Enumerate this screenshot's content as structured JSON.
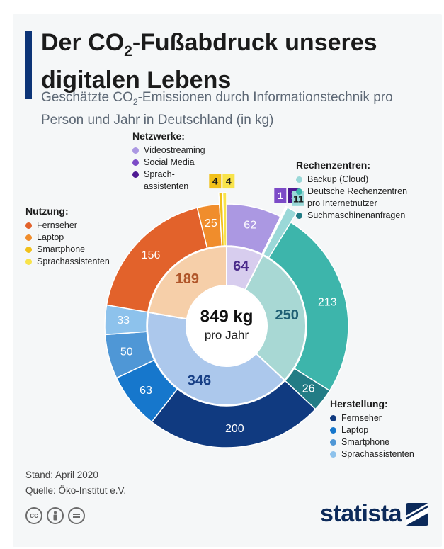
{
  "header": {
    "title_pre": "Der CO",
    "title_sub": "2",
    "title_post": "-Fußabdruck unseres digitalen Lebens",
    "subtitle_pre": "Geschätzte CO",
    "subtitle_sub": "2",
    "subtitle_post": "-Emissionen durch Informationstechnik pro Person und Jahr in Deutschland (in kg)"
  },
  "center": {
    "value": "849 kg",
    "label": "pro Jahr"
  },
  "chart_data": {
    "type": "pie",
    "total": 849,
    "unit": "kg",
    "inner": [
      {
        "name": "Netzwerke",
        "value": 64,
        "label_color": "#4a2a8a"
      },
      {
        "name": "Rechenzentren",
        "value": 250,
        "label_color": "#1f5f74"
      },
      {
        "name": "Herstellung",
        "value": 346,
        "label_color": "#173f86"
      },
      {
        "name": "Nutzung",
        "value": 189,
        "label_color": "#b0562a"
      }
    ],
    "outer": [
      {
        "group": "Netzwerke",
        "name": "Videostreaming",
        "value": 62
      },
      {
        "group": "Netzwerke",
        "name": "Social Media",
        "value": 1
      },
      {
        "group": "Netzwerke",
        "name": "Sprach-assistenten",
        "value": 1
      },
      {
        "group": "Rechenzentren",
        "name": "Backup (Cloud)",
        "value": 11
      },
      {
        "group": "Rechenzentren",
        "name": "Deutsche Rechenzentren pro Internetnutzer",
        "value": 213
      },
      {
        "group": "Rechenzentren",
        "name": "Suchmaschinenanfragen",
        "value": 26
      },
      {
        "group": "Herstellung",
        "name": "Fernseher",
        "value": 200
      },
      {
        "group": "Herstellung",
        "name": "Laptop",
        "value": 63
      },
      {
        "group": "Herstellung",
        "name": "Smartphone",
        "value": 50
      },
      {
        "group": "Herstellung",
        "name": "Sprachassistenten",
        "value": 33
      },
      {
        "group": "Nutzung",
        "name": "Fernseher",
        "value": 156
      },
      {
        "group": "Nutzung",
        "name": "Laptop",
        "value": 25
      },
      {
        "group": "Nutzung",
        "name": "Smartphone",
        "value": 4
      },
      {
        "group": "Nutzung",
        "name": "Sprachassistenten",
        "value": 4
      }
    ],
    "colors": {
      "Netzwerke": {
        "inner": "#d7cdee",
        "outer": [
          "#ab98e2",
          "#7c4bc7",
          "#4e1a93"
        ]
      },
      "Rechenzentren": {
        "inner": "#a8d8d4",
        "outer": [
          "#9ad8d8",
          "#3db5ab",
          "#227c85"
        ]
      },
      "Herstellung": {
        "inner": "#acc8ec",
        "outer": [
          "#103a80",
          "#1677cc",
          "#4f97d6",
          "#8dc2ec"
        ]
      },
      "Nutzung": {
        "inner": "#f6cfa9",
        "outer": [
          "#e2622b",
          "#f08d2c",
          "#f1c01a",
          "#f8e34a"
        ]
      }
    },
    "outer_label_colors": [
      "#ffffff",
      "#ffffff",
      "#ffffff",
      "#1b1b1b",
      "#ffffff",
      "#ffffff",
      "#ffffff",
      "#ffffff",
      "#ffffff",
      "#ffffff",
      "#ffffff",
      "#ffffff",
      "#1b1b1b",
      "#1b1b1b"
    ]
  },
  "legends": {
    "netzwerke": {
      "title": "Netzwerke:",
      "items": [
        {
          "label": "Videostreaming",
          "color": "#ab98e2"
        },
        {
          "label": "Social Media",
          "color": "#7c4bc7"
        },
        {
          "label": "Sprach-\nassistenten",
          "color": "#4e1a93"
        }
      ]
    },
    "rechenzentren": {
      "title": "Rechenzentren:",
      "items": [
        {
          "label": "Backup (Cloud)",
          "color": "#9ad8d8"
        },
        {
          "label": "Deutsche Rechenzentren\npro Internetnutzer",
          "color": "#3db5ab"
        },
        {
          "label": "Suchmaschinenanfragen",
          "color": "#227c85"
        }
      ]
    },
    "nutzung": {
      "title": "Nutzung:",
      "items": [
        {
          "label": "Fernseher",
          "color": "#e2622b"
        },
        {
          "label": "Laptop",
          "color": "#f08d2c"
        },
        {
          "label": "Smartphone",
          "color": "#f1c01a"
        },
        {
          "label": "Sprachassistenten",
          "color": "#f8e34a"
        }
      ]
    },
    "herstellung": {
      "title": "Herstellung:",
      "items": [
        {
          "label": "Fernseher",
          "color": "#103a80"
        },
        {
          "label": "Laptop",
          "color": "#1677cc"
        },
        {
          "label": "Smartphone",
          "color": "#4f97d6"
        },
        {
          "label": "Sprachassistenten",
          "color": "#8dc2ec"
        }
      ]
    }
  },
  "footer": {
    "stand": "Stand: April 2020",
    "quelle": "Quelle: Öko-Institut e.V.",
    "brand": "statista",
    "cc_icons": [
      "cc-icon",
      "person-icon",
      "equals-icon"
    ]
  }
}
